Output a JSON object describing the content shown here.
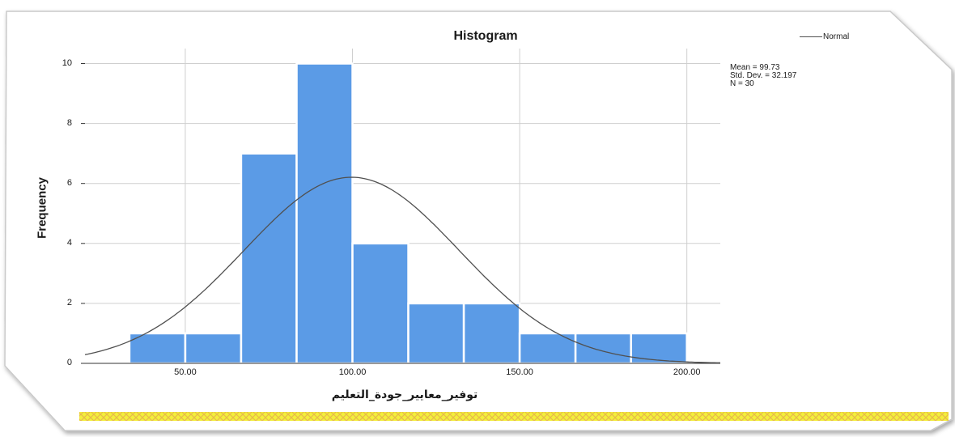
{
  "chart_data": {
    "type": "bar",
    "title": "Histogram",
    "xlabel": "توفير_معايير_جودة_التعليم",
    "ylabel": "Frequency",
    "bins": [
      {
        "from": 33.3,
        "to": 50.0,
        "count": 1
      },
      {
        "from": 50.0,
        "to": 66.7,
        "count": 1
      },
      {
        "from": 66.7,
        "to": 83.3,
        "count": 7
      },
      {
        "from": 83.3,
        "to": 100.0,
        "count": 10
      },
      {
        "from": 100.0,
        "to": 116.7,
        "count": 4
      },
      {
        "from": 116.7,
        "to": 133.3,
        "count": 2
      },
      {
        "from": 133.3,
        "to": 150.0,
        "count": 2
      },
      {
        "from": 150.0,
        "to": 166.7,
        "count": 1
      },
      {
        "from": 166.7,
        "to": 183.3,
        "count": 1
      },
      {
        "from": 183.3,
        "to": 200.0,
        "count": 1
      }
    ],
    "xlim": [
      20,
      210
    ],
    "ylim": [
      0,
      10.5
    ],
    "xticks": [
      {
        "value": 50,
        "label": "50.00"
      },
      {
        "value": 100,
        "label": "100.00"
      },
      {
        "value": 150,
        "label": "150.00"
      },
      {
        "value": 200,
        "label": "200.00"
      }
    ],
    "yticks": [
      {
        "value": 0,
        "label": "0"
      },
      {
        "value": 2,
        "label": "2"
      },
      {
        "value": 4,
        "label": "4"
      },
      {
        "value": 6,
        "label": "6"
      },
      {
        "value": 8,
        "label": "8"
      },
      {
        "value": 10,
        "label": "10"
      }
    ],
    "normal_curve": {
      "mean": 99.73,
      "std": 32.197,
      "n": 30
    },
    "legend": {
      "label": "Normal",
      "placement": "top-right"
    },
    "stats_lines": [
      "Mean = 99.73",
      "Std. Dev. = 32.197",
      "N = 30"
    ],
    "grid": true,
    "colors": {
      "bar": "#5b9be6",
      "bar_edge": "#ffffff",
      "curve": "#505050",
      "grid": "#cfcfcf",
      "axis": "#333333"
    }
  },
  "decor": {
    "ribbon_colors": [
      "#f2ef3a",
      "#e9b94a"
    ]
  }
}
